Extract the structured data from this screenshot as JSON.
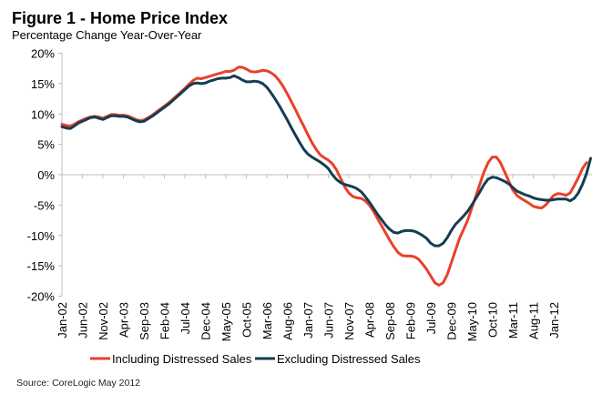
{
  "chart_data": {
    "type": "line",
    "title": "Figure 1 - Home Price Index",
    "subtitle": "Percentage Change Year-Over-Year",
    "source": "Source: CoreLogic May 2012",
    "xlabel": "",
    "ylabel": "",
    "ylim": [
      -20,
      20
    ],
    "yticks": [
      20,
      15,
      10,
      5,
      0,
      -5,
      -10,
      -15,
      -20
    ],
    "ytick_labels": [
      "20%",
      "15%",
      "10%",
      "5%",
      "0%",
      "-5%",
      "-10%",
      "-15%",
      "-20%"
    ],
    "xtick_labels": [
      "Jan-02",
      "Jun-02",
      "Nov-02",
      "Apr-03",
      "Sep-03",
      "Feb-04",
      "Jul-04",
      "Dec-04",
      "May-05",
      "Oct-05",
      "Mar-06",
      "Aug-06",
      "Jan-07",
      "Jun-07",
      "Nov-07",
      "Apr-08",
      "Sep-08",
      "Feb-09",
      "Jul-09",
      "Dec-09",
      "May-10",
      "Oct-10",
      "Mar-11",
      "Aug-11",
      "Jan-12"
    ],
    "x_start": "Jan-02",
    "x_step": "monthly",
    "grid": false,
    "legend_position": "bottom",
    "series": [
      {
        "name": "Including Distressed Sales",
        "color": "#e8412a",
        "values": [
          8.3,
          8.1,
          8.0,
          8.3,
          8.7,
          9.0,
          9.3,
          9.5,
          9.6,
          9.5,
          9.3,
          9.6,
          9.9,
          9.9,
          9.8,
          9.8,
          9.7,
          9.4,
          9.1,
          8.9,
          9.0,
          9.4,
          9.8,
          10.3,
          10.8,
          11.3,
          11.8,
          12.4,
          13.0,
          13.6,
          14.2,
          14.9,
          15.5,
          15.9,
          15.8,
          16.0,
          16.2,
          16.4,
          16.6,
          16.8,
          17.0,
          17.0,
          17.2,
          17.7,
          17.7,
          17.4,
          17.0,
          16.9,
          17.0,
          17.2,
          17.1,
          16.8,
          16.3,
          15.5,
          14.5,
          13.3,
          12.0,
          10.7,
          9.3,
          8.0,
          6.6,
          5.3,
          4.2,
          3.3,
          2.8,
          2.4,
          1.8,
          0.8,
          -0.6,
          -2.0,
          -3.0,
          -3.6,
          -3.8,
          -3.9,
          -4.3,
          -5.0,
          -6.0,
          -7.2,
          -8.4,
          -9.6,
          -10.8,
          -11.9,
          -12.8,
          -13.3,
          -13.4,
          -13.4,
          -13.5,
          -13.9,
          -14.7,
          -15.6,
          -16.7,
          -17.8,
          -18.2,
          -17.8,
          -16.5,
          -14.5,
          -12.5,
          -10.5,
          -9.0,
          -7.5,
          -5.5,
          -3.5,
          -1.5,
          0.5,
          2.0,
          2.9,
          2.9,
          2.0,
          0.5,
          -1.0,
          -2.5,
          -3.4,
          -3.9,
          -4.3,
          -4.7,
          -5.2,
          -5.4,
          -5.5,
          -5.0,
          -4.2,
          -3.4,
          -3.1,
          -3.2,
          -3.4,
          -3.0,
          -1.8,
          -0.5,
          1.0,
          2.0
        ]
      },
      {
        "name": "Excluding Distressed Sales",
        "color": "#143d52",
        "values": [
          7.9,
          7.7,
          7.6,
          8.0,
          8.5,
          8.8,
          9.1,
          9.4,
          9.5,
          9.3,
          9.1,
          9.4,
          9.7,
          9.7,
          9.6,
          9.6,
          9.5,
          9.2,
          8.9,
          8.7,
          8.8,
          9.2,
          9.6,
          10.1,
          10.6,
          11.1,
          11.6,
          12.2,
          12.8,
          13.4,
          14.0,
          14.6,
          15.0,
          15.1,
          15.0,
          15.1,
          15.4,
          15.6,
          15.8,
          15.9,
          15.9,
          16.0,
          16.3,
          16.0,
          15.6,
          15.3,
          15.3,
          15.4,
          15.3,
          15.0,
          14.4,
          13.5,
          12.5,
          11.4,
          10.2,
          9.0,
          7.7,
          6.5,
          5.3,
          4.2,
          3.4,
          2.9,
          2.5,
          2.1,
          1.6,
          1.0,
          0.0,
          -0.8,
          -1.3,
          -1.6,
          -1.8,
          -2.0,
          -2.3,
          -2.8,
          -3.6,
          -4.5,
          -5.5,
          -6.5,
          -7.4,
          -8.3,
          -9.0,
          -9.5,
          -9.6,
          -9.3,
          -9.2,
          -9.2,
          -9.3,
          -9.6,
          -10.0,
          -10.5,
          -11.3,
          -11.7,
          -11.7,
          -11.3,
          -10.4,
          -9.2,
          -8.2,
          -7.5,
          -6.8,
          -6.0,
          -5.0,
          -3.9,
          -2.8,
          -1.6,
          -0.7,
          -0.4,
          -0.5,
          -0.8,
          -1.1,
          -1.5,
          -2.1,
          -2.7,
          -3.0,
          -3.3,
          -3.5,
          -3.8,
          -4.0,
          -4.1,
          -4.2,
          -4.2,
          -4.1,
          -4.0,
          -4.0,
          -4.0,
          -4.3,
          -3.9,
          -3.0,
          -1.6,
          0.2,
          2.7
        ]
      }
    ]
  }
}
